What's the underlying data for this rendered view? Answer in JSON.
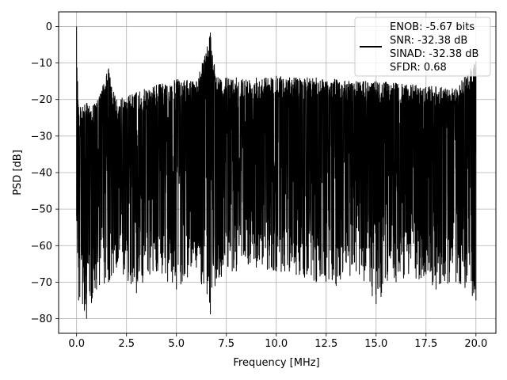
{
  "chart_data": {
    "type": "line",
    "title": "",
    "xlabel": "Frequency [MHz]",
    "ylabel": "PSD [dB]",
    "xlim": [
      -0.9,
      21.0
    ],
    "ylim": [
      -84,
      4
    ],
    "x_ticks": [
      0.0,
      2.5,
      5.0,
      7.5,
      10.0,
      12.5,
      15.0,
      17.5,
      20.0
    ],
    "x_tick_labels": [
      "0.0",
      "2.5",
      "5.0",
      "7.5",
      "10.0",
      "12.5",
      "15.0",
      "17.5",
      "20.0"
    ],
    "y_ticks": [
      0,
      -10,
      -20,
      -30,
      -40,
      -50,
      -60,
      -70,
      -80
    ],
    "y_tick_labels": [
      "0",
      "−10",
      "−20",
      "−30",
      "−40",
      "−50",
      "−60",
      "−70",
      "−80"
    ],
    "grid": true,
    "legend_position": "top-right",
    "legend_entries": [
      "ENOB: -5.67 bits",
      "SNR: -32.38 dB",
      "SINAD: -32.38 dB",
      "SFDR: 0.68"
    ],
    "series_color": "#000000",
    "series": [
      {
        "x": [
          0.0,
          0.05,
          0.1,
          0.3,
          0.5,
          1.0,
          1.6,
          2.0,
          3.0,
          4.0,
          5.0,
          6.0,
          6.7,
          7.0,
          8.0,
          9.0,
          10.0,
          11.0,
          12.0,
          13.0,
          14.0,
          15.0,
          16.0,
          17.0,
          18.0,
          19.0,
          20.0
        ],
        "upper": [
          0,
          -15,
          -22,
          -22,
          -21,
          -21,
          -11.5,
          -20,
          -18,
          -16,
          -14.5,
          -15,
          -1.7,
          -14,
          -14,
          -14,
          -13.5,
          -14,
          -14,
          -14.5,
          -15,
          -15,
          -15.5,
          -16,
          -16.5,
          -17,
          -9.5
        ],
        "lower": [
          -52,
          -62,
          -75,
          -76,
          -80,
          -72,
          -70,
          -66,
          -73,
          -67,
          -72,
          -66,
          -78.8,
          -69,
          -67,
          -66,
          -67,
          -68,
          -70,
          -71,
          -67,
          -76,
          -70,
          -69,
          -72,
          -70,
          -75
        ]
      }
    ]
  }
}
